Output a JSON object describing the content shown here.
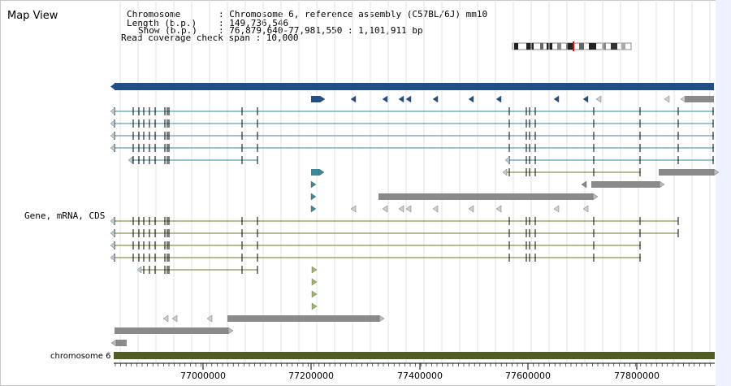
{
  "view": {
    "title": "Map View",
    "info": {
      "chromosome_label": "Chromosome",
      "chromosome_value": ": Chromosome 6, reference assembly (C57BL/6J) mm10",
      "length_label": "Length (b.p.)",
      "length_value": ": 149,736,546",
      "show_label": "Show (b.p.)",
      "show_value": ": 76,879,640-77,981,550 : 1,101,911 bp",
      "coverage_text": "Read coverage check span : 10,000"
    },
    "track_label_genes": "Gene, mRNA, CDS",
    "track_label_chromosome": "chromosome 6",
    "axis_ticks": [
      "77000000",
      "77200000",
      "77400000",
      "77600000",
      "77800000"
    ],
    "colors": {
      "accent_blue": "#1f4e89",
      "teal": "#3a8a9c",
      "olive": "#6b7a2a",
      "chromosome_bar": "#4e5e23",
      "gray_bar": "#8a8a8a",
      "highlight_red": "#ff0000"
    }
  }
}
